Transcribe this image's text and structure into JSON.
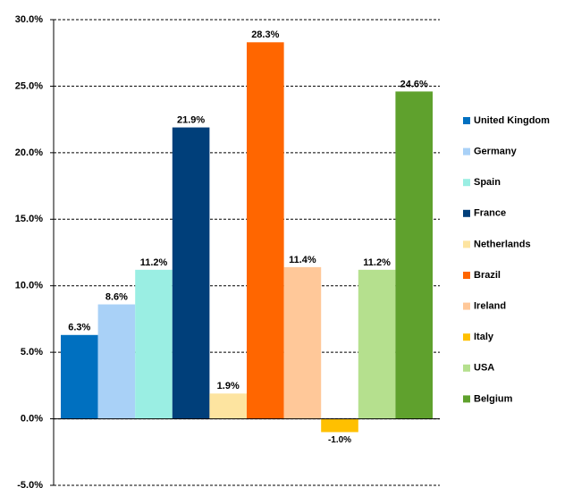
{
  "chart_data": {
    "type": "bar",
    "ylim": [
      -5,
      30
    ],
    "yticks": [
      {
        "value": -5,
        "label": "-5.0%"
      },
      {
        "value": 0,
        "label": "0.0%"
      },
      {
        "value": 5,
        "label": "5.0%"
      },
      {
        "value": 10,
        "label": "10.0%"
      },
      {
        "value": 15,
        "label": "15.0%"
      },
      {
        "value": 20,
        "label": "20.0%"
      },
      {
        "value": 25,
        "label": "25.0%"
      },
      {
        "value": 30,
        "label": "30.0%"
      }
    ],
    "grid": true,
    "legend": "right",
    "series": [
      {
        "name": "United Kingdom",
        "color": "#0070c0",
        "values": [
          6.3
        ],
        "value_labels": [
          "6.3%"
        ]
      },
      {
        "name": "Germany",
        "color": "#a9d1f7",
        "values": [
          8.6
        ],
        "value_labels": [
          "8.6%"
        ]
      },
      {
        "name": "Spain",
        "color": "#9aeee3",
        "values": [
          11.2
        ],
        "value_labels": [
          "11.2%"
        ]
      },
      {
        "name": "France",
        "color": "#003f7a",
        "values": [
          21.9
        ],
        "value_labels": [
          "21.9%"
        ]
      },
      {
        "name": "Netherlands",
        "color": "#fde4a0",
        "values": [
          1.9
        ],
        "value_labels": [
          "1.9%"
        ]
      },
      {
        "name": "Brazil",
        "color": "#ff6600",
        "values": [
          28.3
        ],
        "value_labels": [
          "28.3%"
        ]
      },
      {
        "name": "Ireland",
        "color": "#ffc899",
        "values": [
          11.4
        ],
        "value_labels": [
          "11.4%"
        ]
      },
      {
        "name": "Italy",
        "color": "#ffc000",
        "values": [
          -1.0
        ],
        "value_labels": [
          "-1.0%"
        ]
      },
      {
        "name": "USA",
        "color": "#b5e08e",
        "values": [
          11.2
        ],
        "value_labels": [
          "11.2%"
        ]
      },
      {
        "name": "Belgium",
        "color": "#5fa12d",
        "values": [
          24.6
        ],
        "value_labels": [
          "24.6%"
        ]
      }
    ]
  }
}
